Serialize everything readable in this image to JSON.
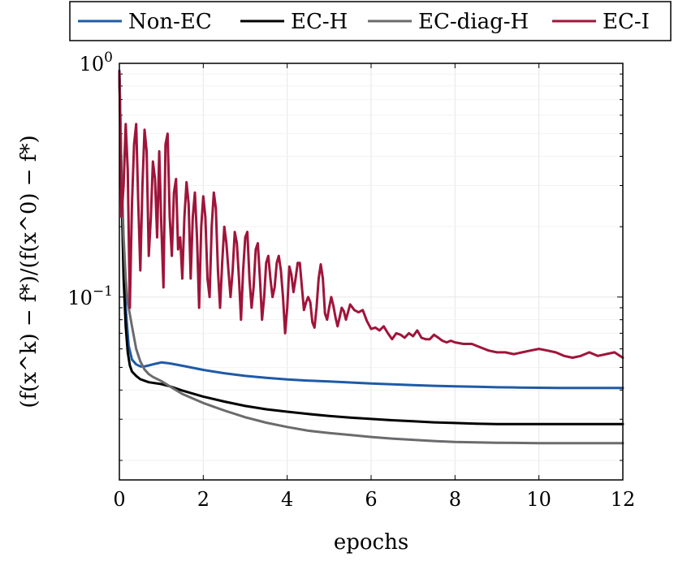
{
  "chart_data": {
    "type": "line",
    "xlabel": "epochs",
    "ylabel": "(f(x^k) − f*)/(f(x^0) − f*)",
    "yscale": "log",
    "xlim": [
      0,
      12
    ],
    "ylim": [
      0.0165,
      1.0
    ],
    "x_ticks": [
      "0",
      "2",
      "4",
      "6",
      "8",
      "10",
      "12"
    ],
    "x_tick_values": [
      0,
      2,
      4,
      6,
      8,
      10,
      12
    ],
    "y_ticks": [
      {
        "value": 1.0,
        "base": "10",
        "exp": "0"
      },
      {
        "value": 0.1,
        "base": "10",
        "exp": "−1"
      }
    ],
    "grid": true,
    "legend_position": "top",
    "series": [
      {
        "name": "Non-EC",
        "color": "#1f5aa6",
        "points": [
          [
            0,
            0.93
          ],
          [
            0.08,
            0.18
          ],
          [
            0.15,
            0.09
          ],
          [
            0.22,
            0.062
          ],
          [
            0.3,
            0.054
          ],
          [
            0.4,
            0.0515
          ],
          [
            0.5,
            0.0505
          ],
          [
            0.6,
            0.0505
          ],
          [
            0.7,
            0.051
          ],
          [
            0.8,
            0.0515
          ],
          [
            0.9,
            0.052
          ],
          [
            1.0,
            0.0525
          ],
          [
            1.2,
            0.052
          ],
          [
            1.5,
            0.0508
          ],
          [
            2,
            0.0488
          ],
          [
            2.5,
            0.0472
          ],
          [
            3,
            0.046
          ],
          [
            3.5,
            0.0451
          ],
          [
            4,
            0.0444
          ],
          [
            4.5,
            0.0439
          ],
          [
            5,
            0.0435
          ],
          [
            5.5,
            0.0431
          ],
          [
            6,
            0.0427
          ],
          [
            6.5,
            0.0423
          ],
          [
            7,
            0.042
          ],
          [
            7.5,
            0.0417
          ],
          [
            8,
            0.0415
          ],
          [
            8.5,
            0.0413
          ],
          [
            9,
            0.0411
          ],
          [
            9.5,
            0.041
          ],
          [
            10,
            0.0409
          ],
          [
            10.5,
            0.0408
          ],
          [
            11,
            0.0408
          ],
          [
            11.5,
            0.0408
          ],
          [
            12,
            0.0408
          ]
        ]
      },
      {
        "name": "EC-H",
        "color": "#000000",
        "points": [
          [
            0,
            0.9
          ],
          [
            0.05,
            0.3
          ],
          [
            0.1,
            0.12
          ],
          [
            0.15,
            0.075
          ],
          [
            0.2,
            0.058
          ],
          [
            0.25,
            0.051
          ],
          [
            0.3,
            0.048
          ],
          [
            0.4,
            0.046
          ],
          [
            0.5,
            0.0445
          ],
          [
            0.7,
            0.0432
          ],
          [
            1.0,
            0.0424
          ],
          [
            1.2,
            0.0415
          ],
          [
            1.5,
            0.0398
          ],
          [
            2,
            0.0375
          ],
          [
            2.5,
            0.0357
          ],
          [
            3,
            0.0342
          ],
          [
            3.5,
            0.0331
          ],
          [
            4,
            0.0323
          ],
          [
            4.5,
            0.0316
          ],
          [
            5,
            0.031
          ],
          [
            5.5,
            0.0305
          ],
          [
            6,
            0.0301
          ],
          [
            6.5,
            0.0297
          ],
          [
            7,
            0.0294
          ],
          [
            7.5,
            0.0291
          ],
          [
            8,
            0.0289
          ],
          [
            8.5,
            0.0287
          ],
          [
            9,
            0.0286
          ],
          [
            9.5,
            0.0286
          ],
          [
            10,
            0.0286
          ],
          [
            11,
            0.0286
          ],
          [
            12,
            0.0286
          ]
        ]
      },
      {
        "name": "EC-diag-H",
        "color": "#6b6b6e",
        "points": [
          [
            0,
            0.92
          ],
          [
            0.05,
            0.35
          ],
          [
            0.1,
            0.18
          ],
          [
            0.15,
            0.12
          ],
          [
            0.2,
            0.095
          ],
          [
            0.3,
            0.075
          ],
          [
            0.4,
            0.06
          ],
          [
            0.5,
            0.053
          ],
          [
            0.6,
            0.049
          ],
          [
            0.7,
            0.0468
          ],
          [
            0.8,
            0.0455
          ],
          [
            1.0,
            0.0437
          ],
          [
            1.2,
            0.0415
          ],
          [
            1.5,
            0.0385
          ],
          [
            2,
            0.0352
          ],
          [
            2.5,
            0.0327
          ],
          [
            3,
            0.0306
          ],
          [
            3.5,
            0.029
          ],
          [
            4,
            0.0278
          ],
          [
            4.5,
            0.0268
          ],
          [
            5,
            0.0262
          ],
          [
            5.5,
            0.0257
          ],
          [
            6,
            0.0252
          ],
          [
            6.5,
            0.0248
          ],
          [
            7,
            0.0245
          ],
          [
            7.5,
            0.0242
          ],
          [
            8,
            0.024
          ],
          [
            8.5,
            0.0239
          ],
          [
            9,
            0.0238
          ],
          [
            10,
            0.0237
          ],
          [
            11,
            0.0237
          ],
          [
            12,
            0.0237
          ]
        ]
      },
      {
        "name": "EC-I",
        "color": "#a0143a",
        "points": [
          [
            0,
            0.92
          ],
          [
            0.05,
            0.22
          ],
          [
            0.1,
            0.3
          ],
          [
            0.15,
            0.55
          ],
          [
            0.2,
            0.35
          ],
          [
            0.25,
            0.09
          ],
          [
            0.3,
            0.25
          ],
          [
            0.35,
            0.45
          ],
          [
            0.4,
            0.55
          ],
          [
            0.45,
            0.25
          ],
          [
            0.5,
            0.13
          ],
          [
            0.55,
            0.3
          ],
          [
            0.6,
            0.52
          ],
          [
            0.65,
            0.42
          ],
          [
            0.7,
            0.15
          ],
          [
            0.75,
            0.22
          ],
          [
            0.8,
            0.38
          ],
          [
            0.85,
            0.32
          ],
          [
            0.9,
            0.18
          ],
          [
            0.95,
            0.42
          ],
          [
            1.0,
            0.2
          ],
          [
            1.05,
            0.11
          ],
          [
            1.1,
            0.45
          ],
          [
            1.15,
            0.5
          ],
          [
            1.2,
            0.22
          ],
          [
            1.25,
            0.15
          ],
          [
            1.3,
            0.28
          ],
          [
            1.35,
            0.32
          ],
          [
            1.4,
            0.16
          ],
          [
            1.45,
            0.18
          ],
          [
            1.5,
            0.12
          ],
          [
            1.55,
            0.22
          ],
          [
            1.6,
            0.31
          ],
          [
            1.65,
            0.25
          ],
          [
            1.7,
            0.12
          ],
          [
            1.75,
            0.22
          ],
          [
            1.8,
            0.28
          ],
          [
            1.85,
            0.18
          ],
          [
            1.9,
            0.09
          ],
          [
            1.95,
            0.2
          ],
          [
            2.0,
            0.27
          ],
          [
            2.05,
            0.22
          ],
          [
            2.1,
            0.12
          ],
          [
            2.15,
            0.1
          ],
          [
            2.2,
            0.2
          ],
          [
            2.25,
            0.28
          ],
          [
            2.3,
            0.24
          ],
          [
            2.35,
            0.13
          ],
          [
            2.4,
            0.09
          ],
          [
            2.45,
            0.14
          ],
          [
            2.5,
            0.2
          ],
          [
            2.55,
            0.17
          ],
          [
            2.6,
            0.13
          ],
          [
            2.65,
            0.1
          ],
          [
            2.7,
            0.13
          ],
          [
            2.75,
            0.19
          ],
          [
            2.8,
            0.17
          ],
          [
            2.85,
            0.12
          ],
          [
            2.9,
            0.08
          ],
          [
            2.95,
            0.13
          ],
          [
            3.0,
            0.18
          ],
          [
            3.05,
            0.19
          ],
          [
            3.1,
            0.12
          ],
          [
            3.15,
            0.09
          ],
          [
            3.2,
            0.11
          ],
          [
            3.25,
            0.16
          ],
          [
            3.3,
            0.17
          ],
          [
            3.35,
            0.12
          ],
          [
            3.4,
            0.08
          ],
          [
            3.45,
            0.1
          ],
          [
            3.5,
            0.14
          ],
          [
            3.55,
            0.15
          ],
          [
            3.6,
            0.12
          ],
          [
            3.65,
            0.1
          ],
          [
            3.7,
            0.11
          ],
          [
            3.75,
            0.14
          ],
          [
            3.8,
            0.15
          ],
          [
            3.85,
            0.13
          ],
          [
            3.9,
            0.1
          ],
          [
            3.95,
            0.07
          ],
          [
            4.0,
            0.09
          ],
          [
            4.05,
            0.135
          ],
          [
            4.1,
            0.125
          ],
          [
            4.15,
            0.105
          ],
          [
            4.2,
            0.12
          ],
          [
            4.25,
            0.14
          ],
          [
            4.3,
            0.14
          ],
          [
            4.35,
            0.11
          ],
          [
            4.4,
            0.088
          ],
          [
            4.45,
            0.095
          ],
          [
            4.5,
            0.1
          ],
          [
            4.55,
            0.095
          ],
          [
            4.6,
            0.078
          ],
          [
            4.65,
            0.074
          ],
          [
            4.7,
            0.09
          ],
          [
            4.75,
            0.12
          ],
          [
            4.8,
            0.138
          ],
          [
            4.85,
            0.12
          ],
          [
            4.9,
            0.085
          ],
          [
            4.95,
            0.08
          ],
          [
            5.0,
            0.09
          ],
          [
            5.05,
            0.1
          ],
          [
            5.1,
            0.092
          ],
          [
            5.15,
            0.082
          ],
          [
            5.2,
            0.075
          ],
          [
            5.25,
            0.082
          ],
          [
            5.3,
            0.09
          ],
          [
            5.35,
            0.087
          ],
          [
            5.4,
            0.08
          ],
          [
            5.5,
            0.093
          ],
          [
            5.6,
            0.088
          ],
          [
            5.7,
            0.086
          ],
          [
            5.8,
            0.088
          ],
          [
            5.9,
            0.079
          ],
          [
            6.0,
            0.073
          ],
          [
            6.1,
            0.074
          ],
          [
            6.2,
            0.072
          ],
          [
            6.3,
            0.075
          ],
          [
            6.4,
            0.07
          ],
          [
            6.5,
            0.066
          ],
          [
            6.6,
            0.07
          ],
          [
            6.7,
            0.069
          ],
          [
            6.8,
            0.067
          ],
          [
            6.9,
            0.07
          ],
          [
            7.0,
            0.068
          ],
          [
            7.1,
            0.072
          ],
          [
            7.2,
            0.067
          ],
          [
            7.3,
            0.066
          ],
          [
            7.4,
            0.066
          ],
          [
            7.5,
            0.069
          ],
          [
            7.6,
            0.067
          ],
          [
            7.7,
            0.065
          ],
          [
            7.8,
            0.064
          ],
          [
            7.9,
            0.065
          ],
          [
            8.0,
            0.064
          ],
          [
            8.2,
            0.063
          ],
          [
            8.4,
            0.063
          ],
          [
            8.6,
            0.061
          ],
          [
            8.8,
            0.059
          ],
          [
            9.0,
            0.058
          ],
          [
            9.2,
            0.058
          ],
          [
            9.4,
            0.057
          ],
          [
            9.6,
            0.058
          ],
          [
            9.8,
            0.059
          ],
          [
            10.0,
            0.06
          ],
          [
            10.2,
            0.059
          ],
          [
            10.4,
            0.058
          ],
          [
            10.6,
            0.056
          ],
          [
            10.8,
            0.055
          ],
          [
            11.0,
            0.056
          ],
          [
            11.2,
            0.058
          ],
          [
            11.4,
            0.056
          ],
          [
            11.6,
            0.057
          ],
          [
            11.8,
            0.058
          ],
          [
            12.0,
            0.055
          ]
        ]
      }
    ]
  }
}
